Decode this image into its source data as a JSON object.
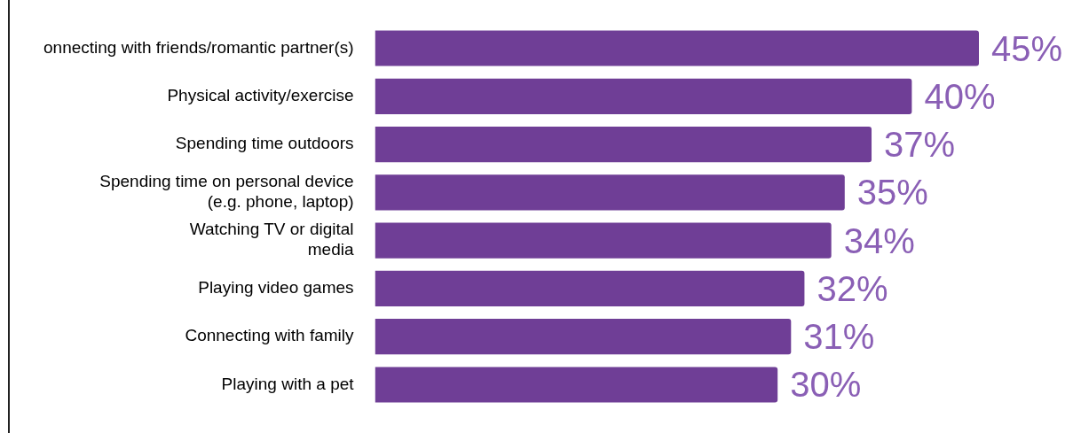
{
  "chart_data": {
    "type": "bar",
    "orientation": "horizontal",
    "xlim": [
      0,
      45
    ],
    "color": "#6f3e96",
    "categories": [
      "onnecting with friends/romantic partner(s)",
      "Physical activity/exercise",
      "Spending time outdoors",
      "Spending time on personal device\n(e.g. phone, laptop)",
      "Watching TV or digital\nmedia",
      "Playing video games",
      "Connecting with family",
      "Playing with a pet"
    ],
    "values": [
      45,
      40,
      37,
      35,
      34,
      32,
      31,
      30
    ],
    "value_labels": [
      "45%",
      "40%",
      "37%",
      "35%",
      "34%",
      "32%",
      "31%",
      "30%"
    ]
  }
}
